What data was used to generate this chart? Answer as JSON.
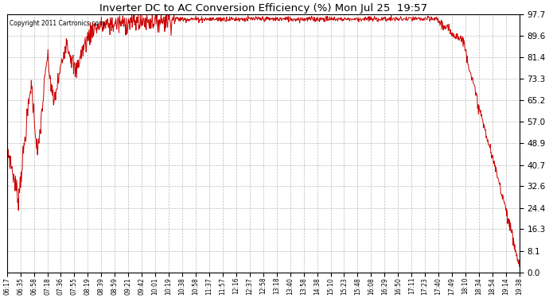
{
  "title": "Inverter DC to AC Conversion Efficiency (%) Mon Jul 25  19:57",
  "copyright": "Copyright 2011 Cartronics.com",
  "background_color": "#ffffff",
  "plot_bg_color": "#ffffff",
  "line_color": "#cc0000",
  "grid_color": "#aaaaaa",
  "ylim": [
    0.0,
    97.7
  ],
  "yticks": [
    0.0,
    8.1,
    16.3,
    24.4,
    32.6,
    40.7,
    48.9,
    57.0,
    65.2,
    73.3,
    81.4,
    89.6,
    97.7
  ],
  "xtick_labels": [
    "06:17",
    "06:35",
    "06:58",
    "07:18",
    "07:36",
    "07:55",
    "08:19",
    "08:39",
    "08:59",
    "09:21",
    "09:42",
    "10:01",
    "10:19",
    "10:38",
    "10:58",
    "11:37",
    "11:57",
    "12:16",
    "12:37",
    "12:58",
    "13:18",
    "13:40",
    "13:58",
    "14:38",
    "15:10",
    "15:23",
    "15:48",
    "16:08",
    "16:29",
    "16:50",
    "17:11",
    "17:23",
    "17:40",
    "17:49",
    "18:10",
    "18:34",
    "18:54",
    "19:14",
    "19:38"
  ]
}
